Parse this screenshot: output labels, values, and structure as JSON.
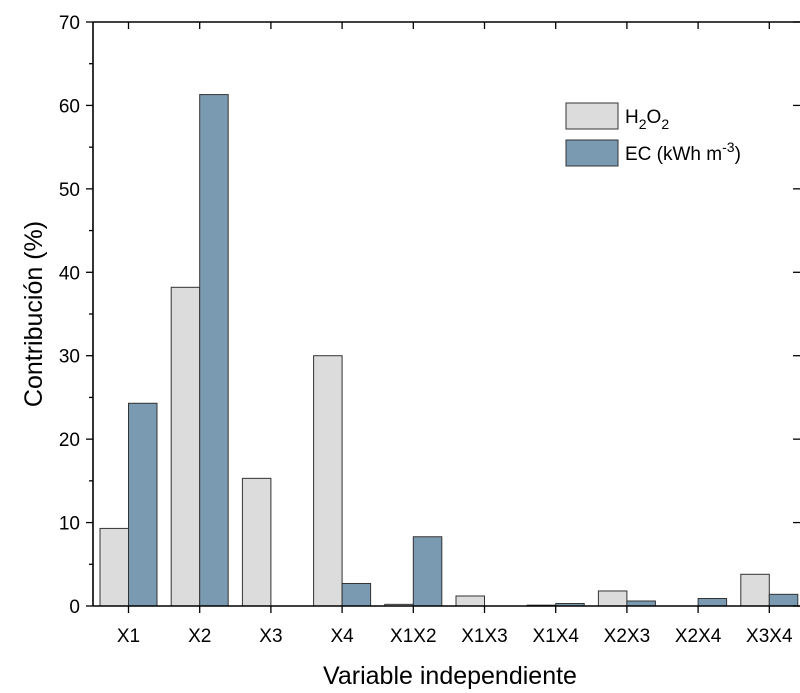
{
  "chart_data": {
    "type": "bar",
    "title": "",
    "xlabel": "Variable independiente",
    "ylabel": "Contribución (%)",
    "ylim": [
      0,
      70
    ],
    "yticks": [
      0,
      10,
      20,
      30,
      40,
      50,
      60,
      70
    ],
    "categories": [
      "X1",
      "X2",
      "X3",
      "X4",
      "X1X2",
      "X1X3",
      "X1X4",
      "X2X3",
      "X2X4",
      "X3X4"
    ],
    "series": [
      {
        "name": "H2O2",
        "color": "#dcdcdc",
        "values": [
          9.3,
          38.2,
          15.3,
          30.0,
          0.2,
          1.2,
          0.1,
          1.8,
          0.0,
          3.8
        ]
      },
      {
        "name": "EC (kWh m-3)",
        "color": "#7a9ab2",
        "values": [
          24.3,
          61.3,
          0.0,
          2.7,
          8.3,
          0.0,
          0.3,
          0.6,
          0.9,
          1.4
        ]
      }
    ],
    "legend": {
      "position": "top-right"
    },
    "grid": false
  }
}
